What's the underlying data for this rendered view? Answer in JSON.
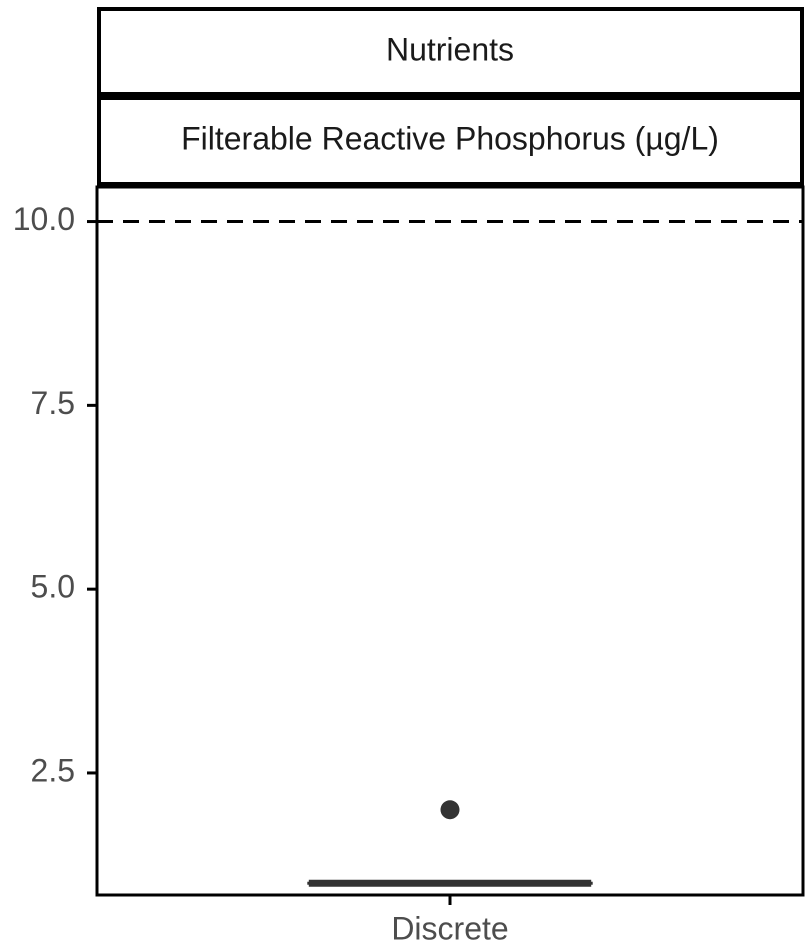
{
  "chart_data": {
    "type": "boxplot",
    "facet_strips": [
      "Nutrients",
      "Filterable Reactive Phosphorus (µg/L)"
    ],
    "categories": [
      "Discrete"
    ],
    "ylim": [
      0.84,
      10.47
    ],
    "yticks": [
      2.5,
      5.0,
      7.5,
      10.0
    ],
    "ytick_labels": [
      "2.5",
      "5.0",
      "7.5",
      "10.0"
    ],
    "reference_line": {
      "y": 10.0,
      "style": "dashed"
    },
    "boxes": [
      {
        "category": "Discrete",
        "median": 1.0,
        "q1": 1.0,
        "q3": 1.0,
        "whisker_low": 1.0,
        "whisker_high": 1.0,
        "outliers": [
          2.0
        ]
      }
    ],
    "grid": false,
    "colors": {
      "box": "#333333",
      "axis": "#000000",
      "text": "#4d4d4d"
    }
  }
}
